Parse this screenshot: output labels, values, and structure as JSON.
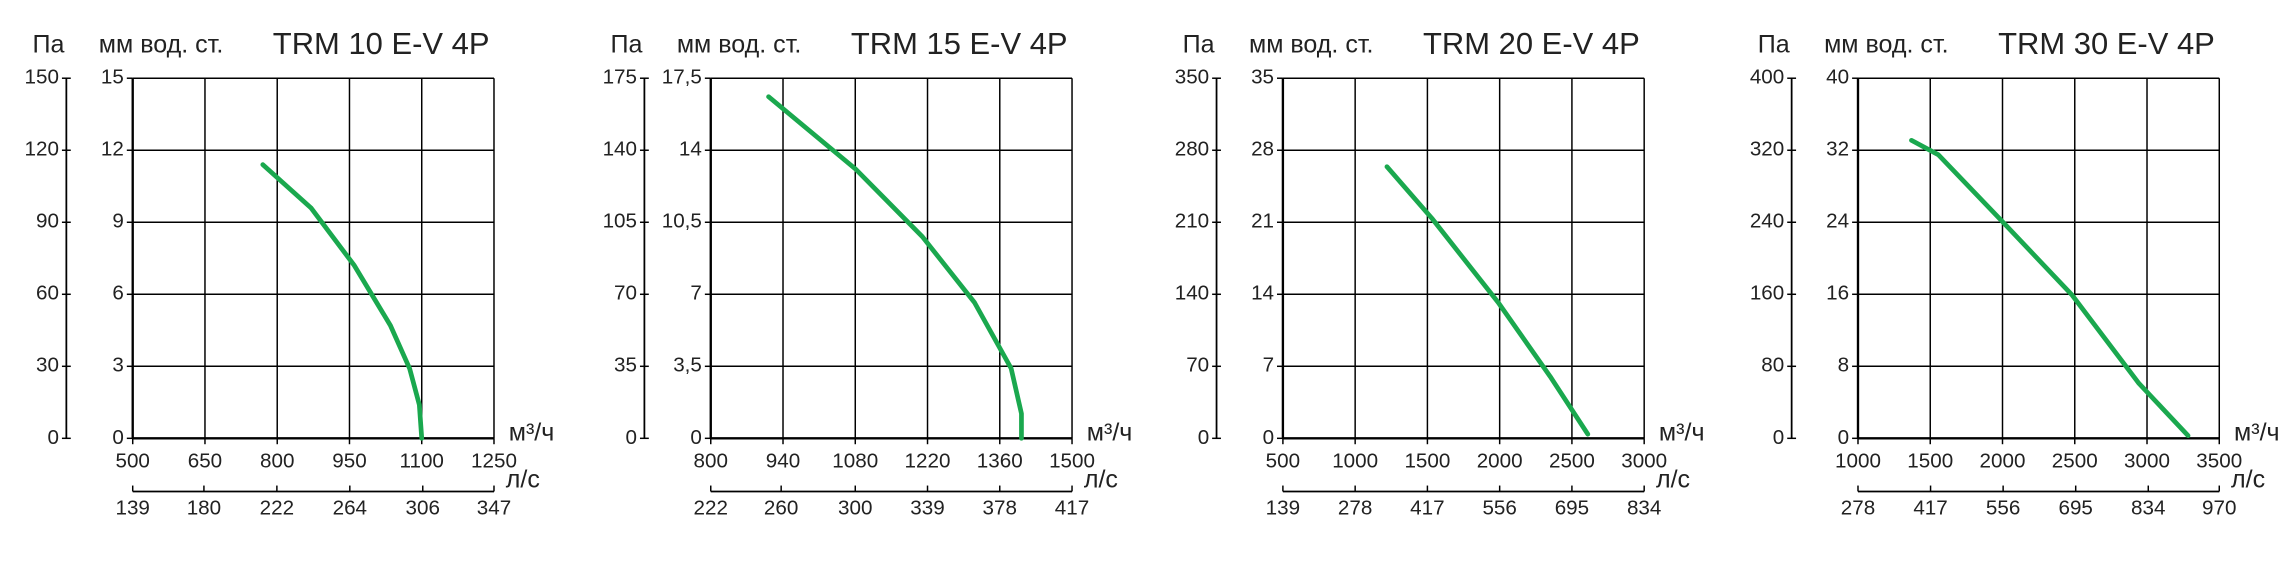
{
  "chart_data": [
    {
      "type": "line",
      "title": "TRM 10 E-V 4P",
      "ylabel": "Па",
      "y2label": "мм вод. ст.",
      "xlabel": "м³/ч",
      "x2label": "л/с",
      "color": "#1aa84e",
      "grid": true,
      "x": [
        770,
        870,
        960,
        1035,
        1075,
        1095,
        1100
      ],
      "values": [
        114,
        96,
        72,
        47,
        29,
        14,
        0
      ],
      "xlim": [
        500,
        1250
      ],
      "xticks": [
        500,
        650,
        800,
        950,
        1100,
        1250
      ],
      "x2lim": [
        139,
        347
      ],
      "x2ticks": [
        139,
        180,
        222,
        264,
        306,
        347
      ],
      "ylim": [
        0,
        150
      ],
      "yticks": [
        0,
        30,
        60,
        90,
        120,
        150
      ],
      "y2lim": [
        0,
        15
      ],
      "y2ticks": [
        0,
        3,
        6,
        9,
        12,
        15
      ]
    },
    {
      "type": "line",
      "title": "TRM 15 E-V 4P",
      "ylabel": "Па",
      "y2label": "мм вод. ст.",
      "xlabel": "м³/ч",
      "x2label": "л/с",
      "color": "#1aa84e",
      "grid": true,
      "x": [
        912,
        1080,
        1210,
        1311,
        1382,
        1402,
        1402
      ],
      "values": [
        166,
        131,
        98,
        66,
        34,
        12,
        0
      ],
      "xlim": [
        800,
        1500
      ],
      "xticks": [
        800,
        940,
        1080,
        1220,
        1360,
        1500
      ],
      "x2lim": [
        222,
        417
      ],
      "x2ticks": [
        222,
        260,
        300,
        339,
        378,
        417
      ],
      "ylim": [
        0,
        175
      ],
      "yticks": [
        0,
        35,
        70,
        105,
        140,
        175
      ],
      "y2lim": [
        0,
        17.5
      ],
      "y2ticks": [
        0,
        {
          "value": 3.5,
          "label": "3,5"
        },
        7,
        {
          "value": 10.5,
          "label": "10,5"
        },
        14,
        {
          "value": 17.5,
          "label": "17,5"
        }
      ]
    },
    {
      "type": "line",
      "title": "TRM 20 E-V 4P",
      "ylabel": "Па",
      "y2label": "мм вод. ст.",
      "xlabel": "м³/ч",
      "x2label": "л/с",
      "color": "#1aa84e",
      "grid": true,
      "x": [
        1220,
        1530,
        1990,
        2350,
        2610
      ],
      "values": [
        264,
        214,
        132,
        60,
        4
      ],
      "xlim": [
        500,
        3000
      ],
      "xticks": [
        500,
        1000,
        1500,
        2000,
        2500,
        3000
      ],
      "x2lim": [
        139,
        834
      ],
      "x2ticks": [
        139,
        278,
        417,
        556,
        695,
        834
      ],
      "ylim": [
        0,
        350
      ],
      "yticks": [
        0,
        70,
        140,
        210,
        280,
        350
      ],
      "y2lim": [
        0,
        35
      ],
      "y2ticks": [
        0,
        7,
        14,
        21,
        28,
        35
      ]
    },
    {
      "type": "line",
      "title": "TRM 30 E-V 4P",
      "ylabel": "Па",
      "y2label": "мм вод. ст.",
      "xlabel": "м³/ч",
      "x2label": "л/с",
      "color": "#1aa84e",
      "grid": true,
      "x": [
        1370,
        1556,
        1998,
        2482,
        2944,
        3284
      ],
      "values": [
        331,
        315,
        241,
        159,
        61,
        3
      ],
      "xlim": [
        1000,
        3500
      ],
      "xticks": [
        1000,
        1500,
        2000,
        2500,
        3000,
        3500
      ],
      "x2lim": [
        278,
        970
      ],
      "x2ticks": [
        278,
        417,
        556,
        695,
        834,
        970
      ],
      "ylim": [
        0,
        400
      ],
      "yticks": [
        0,
        80,
        160,
        240,
        320,
        400
      ],
      "y2lim": [
        0,
        40
      ],
      "y2ticks": [
        0,
        8,
        16,
        24,
        32,
        40
      ]
    }
  ]
}
